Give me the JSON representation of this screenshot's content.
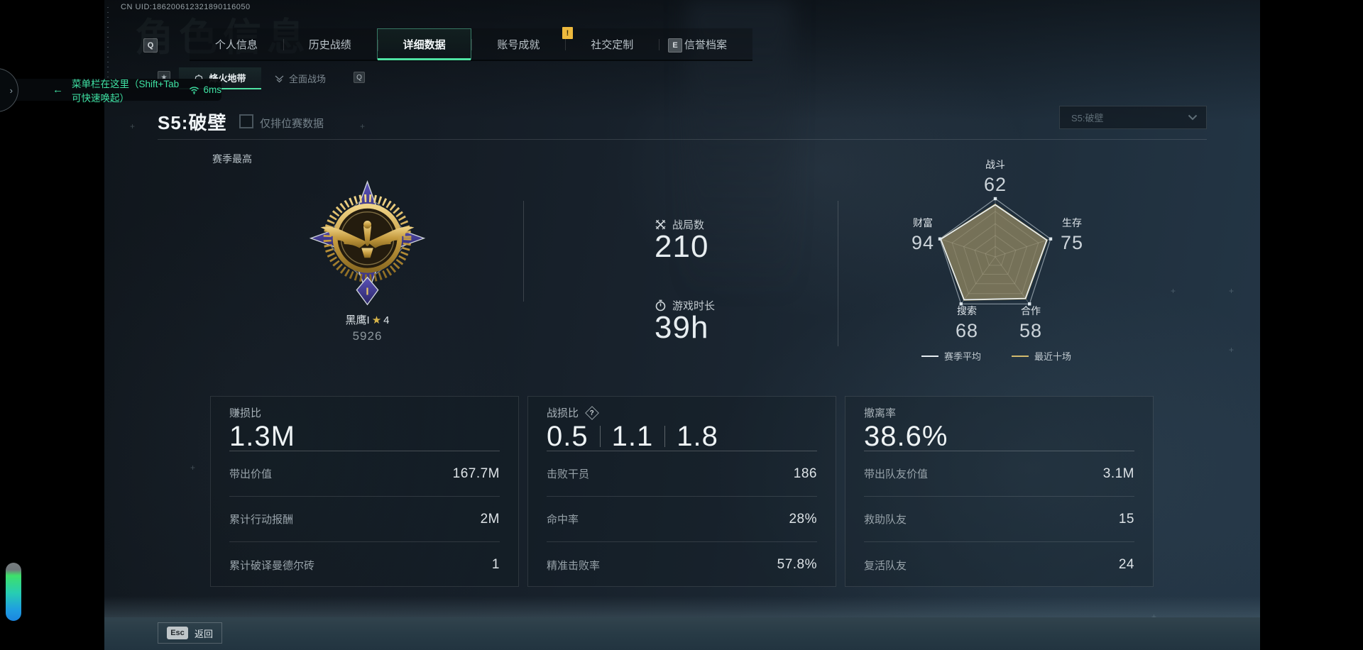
{
  "meta": {
    "uid": "CN UID:186200612321890116050",
    "watermark": "角色信息",
    "back_arrow": "←",
    "menu_hint": "菜单栏在这里（Shift+Tab可快速唤起）",
    "ping": "6ms",
    "chevron": "›"
  },
  "keys": {
    "prev_tab": "Q",
    "next_tab": "E",
    "alert": "!",
    "subtab_star": "★",
    "subtab_key": "Q"
  },
  "tabs": {
    "items": [
      {
        "label": "个人信息"
      },
      {
        "label": "历史战绩"
      },
      {
        "label": "详细数据"
      },
      {
        "label": "账号成就"
      },
      {
        "label": "社交定制"
      },
      {
        "label": "信誉档案"
      }
    ]
  },
  "subtabs": {
    "items": [
      {
        "label": "烽火地带"
      },
      {
        "label": "全面战场"
      }
    ]
  },
  "season": {
    "title": "S5:破壁",
    "ranked_only_label": "仅排位赛数据",
    "dropdown_value": "S5:破壁",
    "best_label": "赛季最高",
    "rank_name": "黑鹰I",
    "rank_star": "★",
    "rank_level": "4",
    "rank_score": "5926",
    "medal_tier": "I"
  },
  "overview": {
    "matches_label": "战局数",
    "matches_value": "210",
    "playtime_label": "游戏时长",
    "playtime_value": "39h"
  },
  "chart_data": {
    "type": "radar",
    "categories": [
      "战斗",
      "生存",
      "合作",
      "搜索",
      "财富"
    ],
    "max": 100,
    "series": [
      {
        "name": "赛季平均",
        "color": "#e6edf2",
        "values": [
          62,
          75,
          58,
          68,
          94
        ]
      },
      {
        "name": "最近十场",
        "color": "#d3ba6d",
        "values": [
          65,
          77,
          60,
          70,
          95
        ]
      }
    ],
    "legend_position": "bottom",
    "grid": true
  },
  "cards": [
    {
      "title": "赚损比",
      "big_value": "1.3M",
      "rows": [
        {
          "label": "带出价值",
          "value": "167.7M"
        },
        {
          "label": "累计行动报酬",
          "value": "2M"
        },
        {
          "label": "累计破译曼德尔砖",
          "value": "1"
        }
      ]
    },
    {
      "title": "战损比",
      "help_icon": "?",
      "big_values": [
        "0.5",
        "1.1",
        "1.8"
      ],
      "rows": [
        {
          "label": "击败干员",
          "value": "186"
        },
        {
          "label": "命中率",
          "value": "28%"
        },
        {
          "label": "精准击败率",
          "value": "57.8%"
        }
      ]
    },
    {
      "title": "撤离率",
      "big_value": "38.6%",
      "rows": [
        {
          "label": "带出队友价值",
          "value": "3.1M"
        },
        {
          "label": "救助队友",
          "value": "15"
        },
        {
          "label": "复活队友",
          "value": "24"
        }
      ]
    }
  ],
  "footer": {
    "esc_key": "Esc",
    "back_label": "返回"
  }
}
